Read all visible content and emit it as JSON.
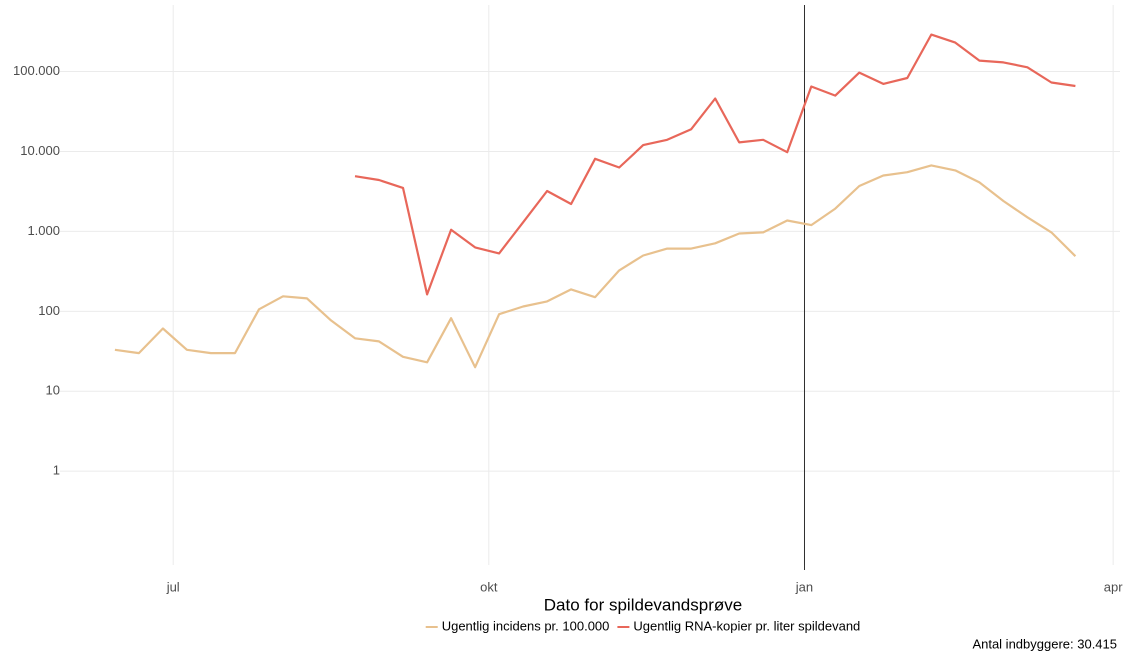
{
  "chart_data": {
    "type": "line",
    "x_label": "Dato for spildevandsprøve",
    "caption": "Antal indbyggere: 30.415",
    "log_y": true,
    "grid": true,
    "legend": "bottom",
    "vline": 184,
    "x": [
      -17,
      -10,
      -3,
      4,
      11,
      18,
      25,
      32,
      39,
      46,
      53,
      60,
      67,
      74,
      81,
      88,
      95,
      102,
      109,
      116,
      123,
      130,
      137,
      144,
      151,
      158,
      165,
      172,
      179,
      186,
      193,
      200,
      207,
      214,
      221,
      228,
      235,
      242,
      249,
      256,
      263
    ],
    "series": [
      {
        "name": "Ugentlig incidens pr. 100.000",
        "color": "#e8c18e",
        "values": [
          33,
          30,
          61,
          33,
          30,
          30,
          106,
          154,
          145,
          77,
          46,
          42,
          27,
          23,
          82,
          20,
          92,
          115,
          133,
          188,
          150,
          325,
          500,
          610,
          610,
          710,
          940,
          970,
          1370,
          1200,
          1930,
          3700,
          5000,
          5500,
          6700,
          5800,
          4100,
          2400,
          1500,
          970,
          490
        ]
      },
      {
        "name": "Ugentlig RNA-kopier pr. liter spildevand",
        "color": "#e8675a",
        "values": [
          null,
          null,
          null,
          null,
          null,
          null,
          null,
          null,
          null,
          null,
          4900,
          4400,
          3500,
          163,
          1050,
          630,
          530,
          1300,
          3200,
          2200,
          8100,
          6300,
          12000,
          14000,
          19000,
          46000,
          13000,
          14000,
          9800,
          65000,
          50000,
          97000,
          70000,
          83000,
          290000,
          230000,
          137000,
          130000,
          113000,
          73000,
          66000
        ]
      }
    ],
    "xlim": [
      -33,
      276
    ],
    "xticks": [
      {
        "value": 0,
        "label": "jul"
      },
      {
        "value": 92,
        "label": "okt"
      },
      {
        "value": 184,
        "label": "jan"
      },
      {
        "value": 274,
        "label": "apr"
      }
    ],
    "ylim": [
      0.067,
      680000
    ],
    "yticks": [
      1,
      10,
      100,
      {
        "value": 1000,
        "label": "1.000"
      },
      {
        "value": 10000,
        "label": "10.000"
      },
      {
        "value": 100000,
        "label": "100.000"
      }
    ]
  }
}
